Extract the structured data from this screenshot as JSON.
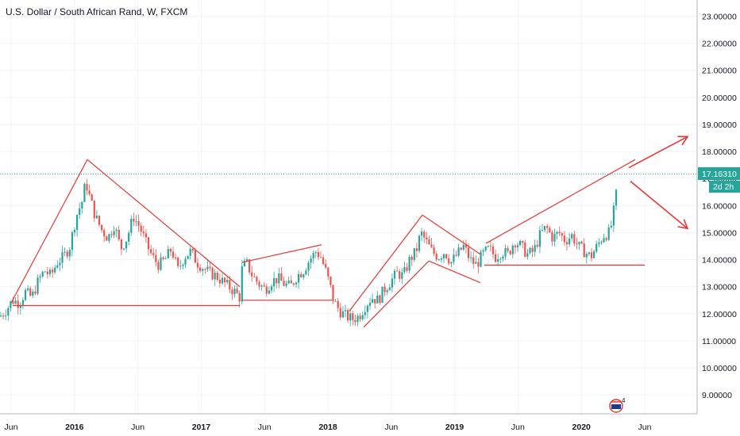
{
  "chart_data": {
    "type": "candlestick",
    "title": "U.S. Dollar / South African Rand, W, FXCM",
    "ylim": [
      8.3,
      23.6
    ],
    "y_ticks": [
      "23.00000",
      "22.00000",
      "21.00000",
      "20.00000",
      "19.00000",
      "18.00000",
      "17.00000",
      "16.00000",
      "15.00000",
      "14.00000",
      "13.00000",
      "12.00000",
      "11.00000",
      "10.00000",
      "9.00000"
    ],
    "x_ticks": [
      {
        "label": "Jun",
        "bold": false
      },
      {
        "label": "2016",
        "bold": true
      },
      {
        "label": "Jun",
        "bold": false
      },
      {
        "label": "2017",
        "bold": true
      },
      {
        "label": "Jun",
        "bold": false
      },
      {
        "label": "2018",
        "bold": true
      },
      {
        "label": "Jun",
        "bold": false
      },
      {
        "label": "2019",
        "bold": true
      },
      {
        "label": "Jun",
        "bold": false
      },
      {
        "label": "2020",
        "bold": true
      },
      {
        "label": "Jun",
        "bold": false
      }
    ],
    "last_price": "17.16310",
    "countdown": "2d 2h",
    "grid": true,
    "colors": {
      "up": "#26a69a",
      "down": "#ef5350",
      "drawing": "#e53935",
      "price_line": "#26a69a"
    },
    "price_path": [
      [
        0,
        11.9
      ],
      [
        8,
        12.15
      ],
      [
        16,
        12.5
      ],
      [
        24,
        12.4
      ],
      [
        32,
        12.8
      ],
      [
        40,
        12.6
      ],
      [
        48,
        13.2
      ],
      [
        56,
        13.6
      ],
      [
        64,
        13.4
      ],
      [
        72,
        13.9
      ],
      [
        80,
        14.1
      ],
      [
        88,
        14.5
      ],
      [
        96,
        15.6
      ],
      [
        104,
        16.2
      ],
      [
        108,
        16.9
      ],
      [
        112,
        16.4
      ],
      [
        120,
        15.6
      ],
      [
        128,
        15.1
      ],
      [
        136,
        14.8
      ],
      [
        144,
        15.3
      ],
      [
        152,
        14.4
      ],
      [
        160,
        14.8
      ],
      [
        168,
        15.6
      ],
      [
        176,
        15.2
      ],
      [
        184,
        14.6
      ],
      [
        192,
        14.1
      ],
      [
        200,
        13.8
      ],
      [
        208,
        14.0
      ],
      [
        216,
        14.4
      ],
      [
        224,
        13.6
      ],
      [
        232,
        14.1
      ],
      [
        240,
        14.3
      ],
      [
        248,
        13.9
      ],
      [
        256,
        13.7
      ],
      [
        264,
        13.5
      ],
      [
        272,
        13.4
      ],
      [
        280,
        13.2
      ],
      [
        288,
        13.0
      ],
      [
        296,
        12.8
      ],
      [
        302,
        12.6
      ],
      [
        304,
        13.6
      ],
      [
        310,
        13.9
      ],
      [
        318,
        13.4
      ],
      [
        326,
        13.1
      ],
      [
        334,
        12.9
      ],
      [
        342,
        13.2
      ],
      [
        350,
        13.3
      ],
      [
        358,
        13.1
      ],
      [
        366,
        13.0
      ],
      [
        374,
        13.4
      ],
      [
        382,
        13.6
      ],
      [
        390,
        14.0
      ],
      [
        398,
        14.3
      ],
      [
        404,
        14.1
      ],
      [
        410,
        13.6
      ],
      [
        416,
        13.0
      ],
      [
        420,
        12.5
      ],
      [
        428,
        12.1
      ],
      [
        436,
        11.9
      ],
      [
        444,
        11.8
      ],
      [
        452,
        11.9
      ],
      [
        460,
        12.3
      ],
      [
        468,
        12.6
      ],
      [
        476,
        12.5
      ],
      [
        484,
        12.9
      ],
      [
        492,
        13.2
      ],
      [
        500,
        13.5
      ],
      [
        508,
        13.4
      ],
      [
        516,
        14.0
      ],
      [
        524,
        14.3
      ],
      [
        530,
        15.0
      ],
      [
        536,
        14.7
      ],
      [
        544,
        14.3
      ],
      [
        552,
        14.1
      ],
      [
        560,
        14.3
      ],
      [
        568,
        13.9
      ],
      [
        576,
        14.2
      ],
      [
        584,
        14.5
      ],
      [
        592,
        14.0
      ],
      [
        600,
        13.8
      ],
      [
        608,
        14.2
      ],
      [
        616,
        14.4
      ],
      [
        624,
        14.1
      ],
      [
        632,
        14.3
      ],
      [
        640,
        14.2
      ],
      [
        648,
        14.7
      ],
      [
        656,
        14.5
      ],
      [
        664,
        14.2
      ],
      [
        672,
        14.3
      ],
      [
        680,
        14.9
      ],
      [
        688,
        15.2
      ],
      [
        696,
        14.8
      ],
      [
        704,
        15.0
      ],
      [
        712,
        14.7
      ],
      [
        720,
        14.9
      ],
      [
        728,
        14.5
      ],
      [
        736,
        14.3
      ],
      [
        744,
        14.1
      ],
      [
        752,
        14.5
      ],
      [
        760,
        14.9
      ],
      [
        768,
        15.0
      ],
      [
        772,
        15.6
      ],
      [
        776,
        16.4
      ],
      [
        779,
        17.16
      ]
    ],
    "drawings": [
      {
        "type": "line",
        "points": [
          [
            14,
            12.4
          ],
          [
            110,
            17.7
          ]
        ]
      },
      {
        "type": "line",
        "points": [
          [
            110,
            17.7
          ],
          [
            302,
            13.0
          ]
        ]
      },
      {
        "type": "line",
        "points": [
          [
            16,
            12.3
          ],
          [
            302,
            12.3
          ]
        ]
      },
      {
        "type": "line",
        "points": [
          [
            305,
            13.9
          ],
          [
            405,
            14.55
          ]
        ]
      },
      {
        "type": "line",
        "points": [
          [
            305,
            12.5
          ],
          [
            418,
            12.5
          ]
        ]
      },
      {
        "type": "line",
        "points": [
          [
            440,
            12.1
          ],
          [
            532,
            15.65
          ]
        ]
      },
      {
        "type": "line",
        "points": [
          [
            458,
            11.5
          ],
          [
            540,
            13.95
          ]
        ]
      },
      {
        "type": "line",
        "points": [
          [
            532,
            15.65
          ],
          [
            605,
            14.2
          ]
        ]
      },
      {
        "type": "line",
        "points": [
          [
            540,
            13.95
          ],
          [
            605,
            13.15
          ]
        ]
      },
      {
        "type": "line",
        "points": [
          [
            612,
            14.6
          ],
          [
            800,
            17.7
          ]
        ]
      },
      {
        "type": "line",
        "points": [
          [
            610,
            13.8
          ],
          [
            812,
            13.8
          ]
        ]
      },
      {
        "type": "arrow",
        "points": [
          [
            792,
            17.4
          ],
          [
            866,
            18.55
          ]
        ]
      },
      {
        "type": "arrow",
        "points": [
          [
            794,
            16.9
          ],
          [
            866,
            15.15
          ]
        ]
      }
    ]
  }
}
